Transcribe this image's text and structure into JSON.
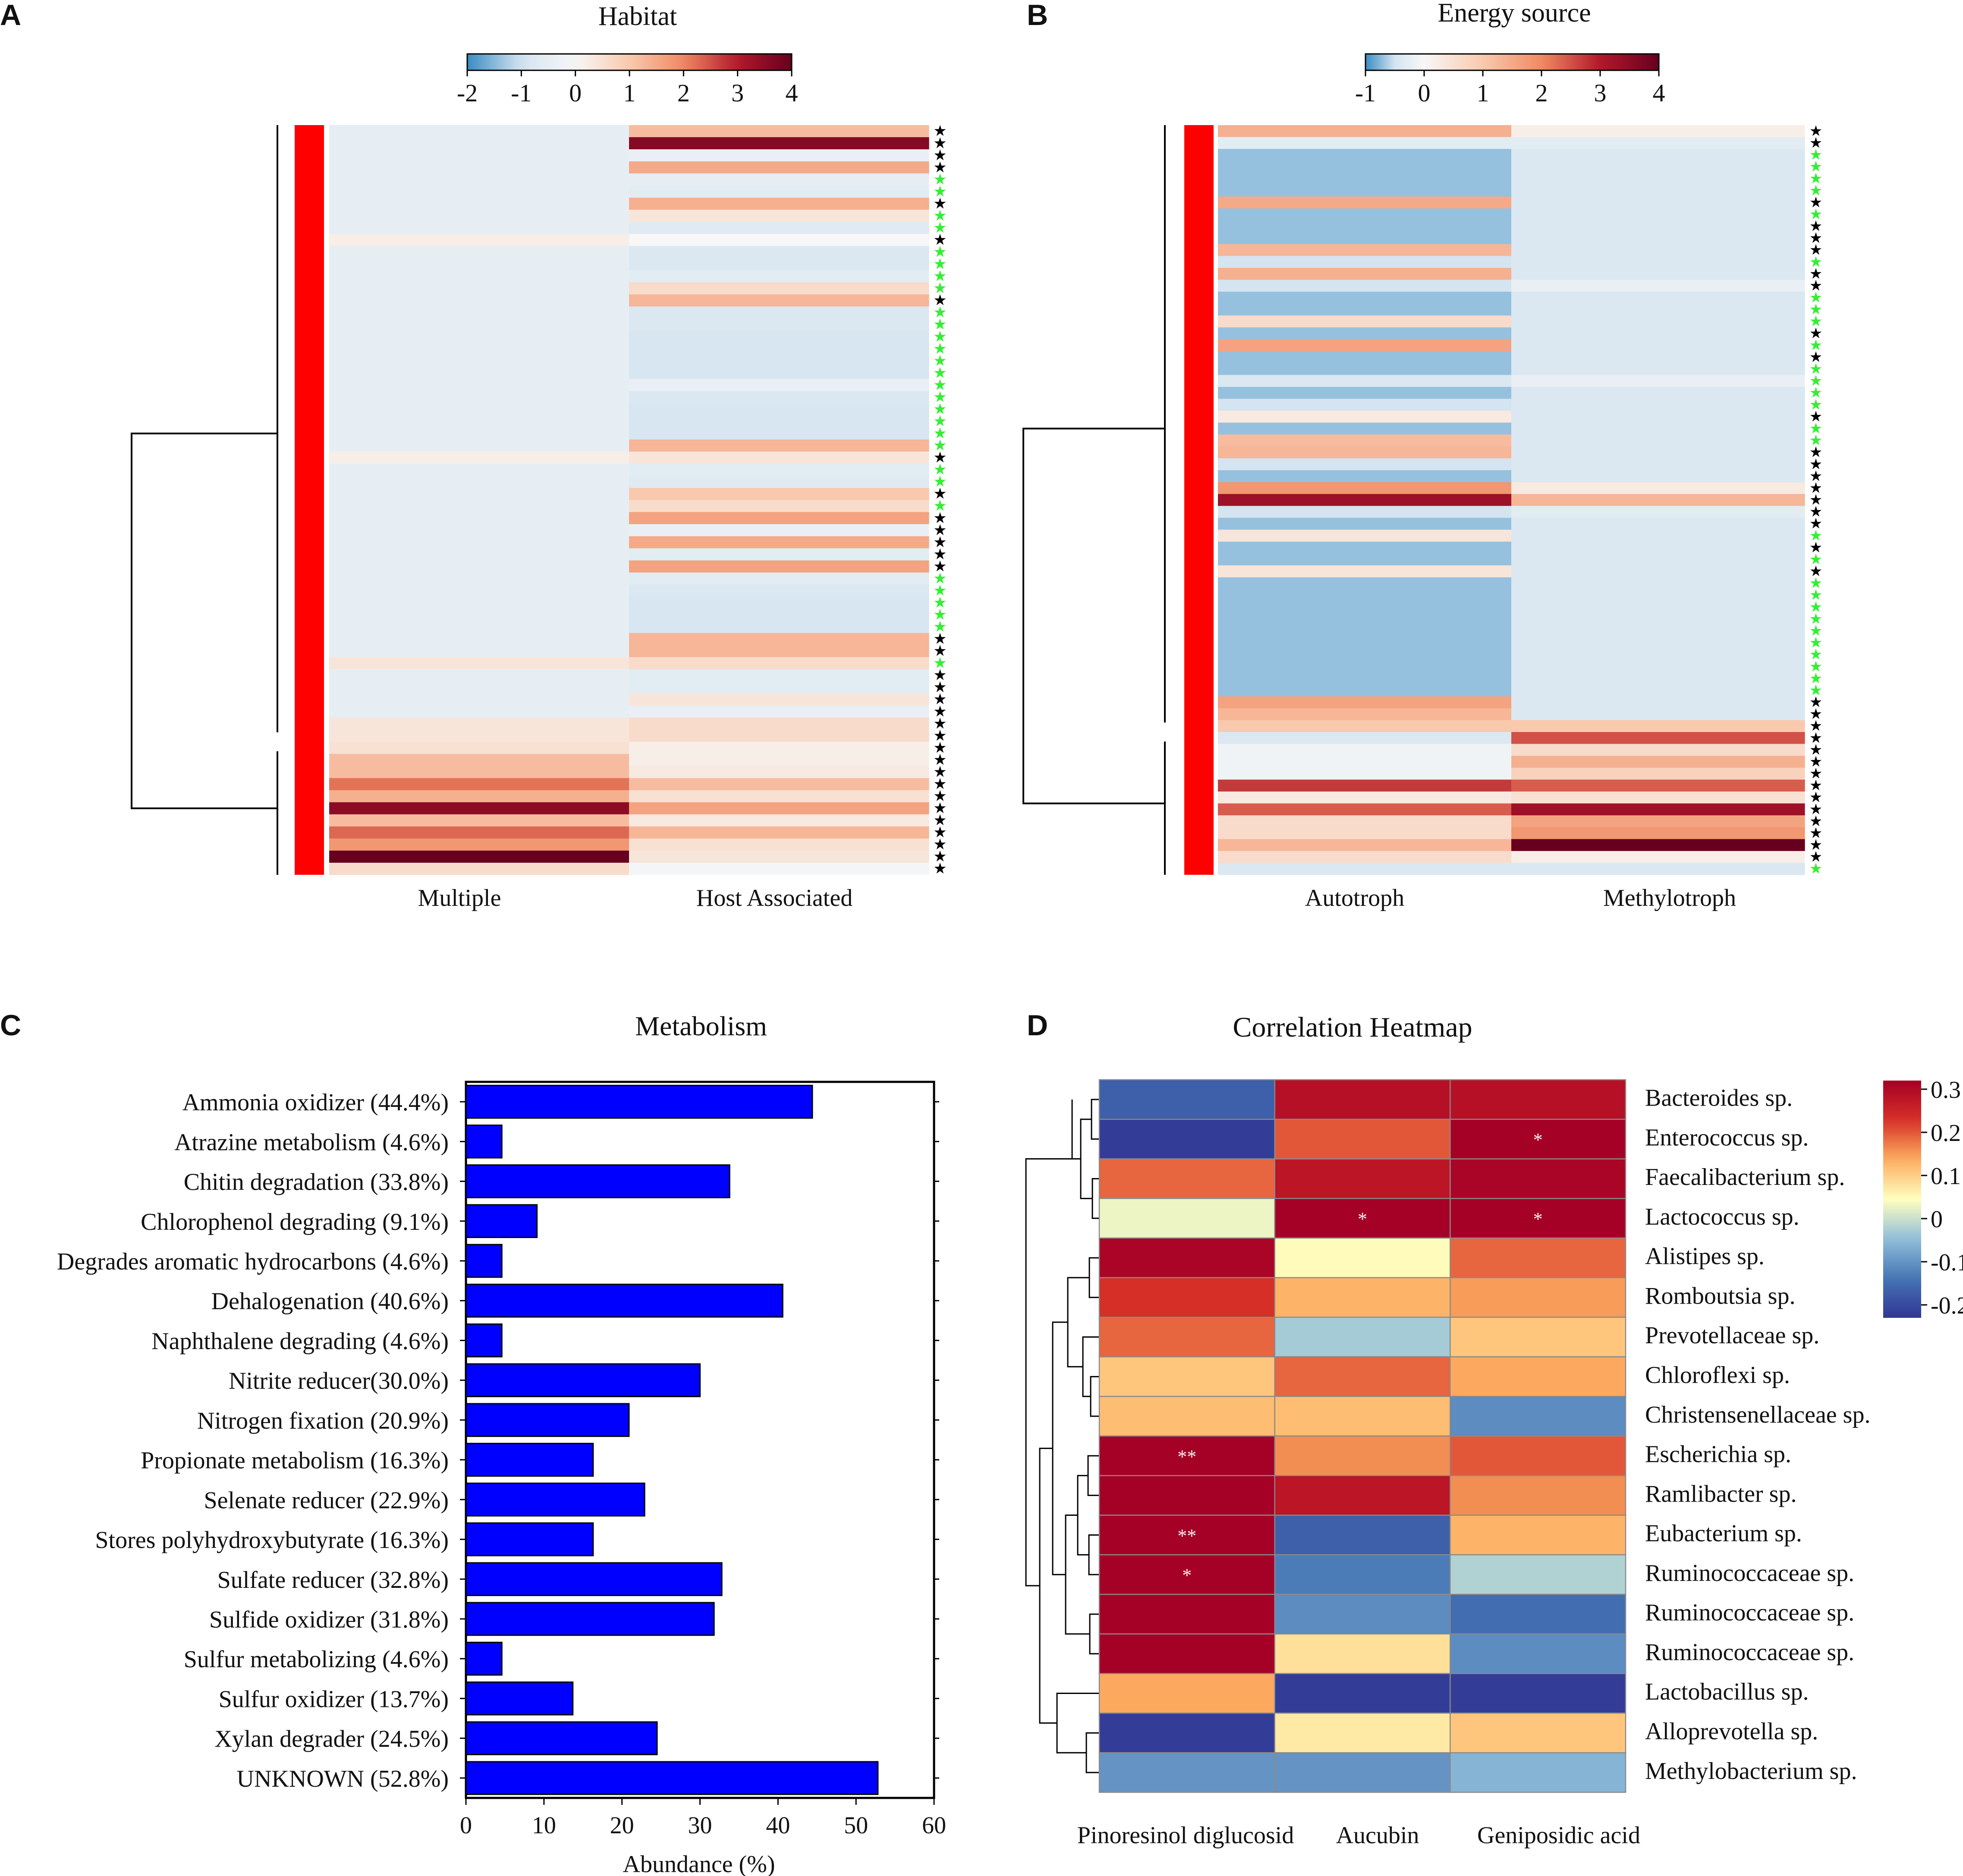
{
  "figure": {
    "panel_labels": [
      "A",
      "B",
      "C",
      "D"
    ]
  },
  "colors": {
    "heat_low": "#3a8cc4",
    "heat_mid_low": "#d4e4f0",
    "heat_mid": "#f7f7f7",
    "heat_mid_high": "#ef8a62",
    "heat_high": "#b2182b",
    "heat_top": "#67001f",
    "cluster_bar": "#ff0000",
    "star_black": "#000000",
    "star_green": "#33ee33",
    "bar_fill": "#0000ff",
    "corr_low": "#313695",
    "corr_mid": "#ffffbf",
    "corr_high": "#a50026"
  },
  "chart_data": [
    {
      "panel": "A",
      "type": "heatmap",
      "title": "Habitat",
      "columns": [
        "Multiple",
        "Host Associated"
      ],
      "colorbar_ticks": [
        "-2",
        "-1",
        "0",
        "1",
        "2",
        "3",
        "4"
      ],
      "colorbar_range": [
        -2,
        4
      ],
      "cluster_split_row": 51,
      "star_symbol": "★",
      "rows": [
        [
          -0.5,
          1.2
        ],
        [
          -0.5,
          3.6
        ],
        [
          -0.5,
          -0.4
        ],
        [
          -0.5,
          1.5
        ],
        [
          -0.5,
          -0.5
        ],
        [
          -0.5,
          -0.6
        ],
        [
          -0.5,
          1.4
        ],
        [
          -0.5,
          0.4
        ],
        [
          -0.5,
          -0.7
        ],
        [
          0.2,
          0.0
        ],
        [
          -0.5,
          -0.8
        ],
        [
          -0.5,
          -0.8
        ],
        [
          -0.5,
          -0.6
        ],
        [
          -0.5,
          0.6
        ],
        [
          -0.5,
          1.3
        ],
        [
          -0.5,
          -0.8
        ],
        [
          -0.5,
          -0.8
        ],
        [
          -0.5,
          -0.9
        ],
        [
          -0.5,
          -0.9
        ],
        [
          -0.5,
          -0.9
        ],
        [
          -0.5,
          -0.9
        ],
        [
          -0.5,
          -0.4
        ],
        [
          -0.5,
          -0.8
        ],
        [
          -0.5,
          -0.9
        ],
        [
          -0.5,
          -0.9
        ],
        [
          -0.5,
          -0.9
        ],
        [
          -0.5,
          1.3
        ],
        [
          0.2,
          0.4
        ],
        [
          -0.5,
          -0.6
        ],
        [
          -0.5,
          -0.7
        ],
        [
          -0.5,
          1.0
        ],
        [
          -0.5,
          0.6
        ],
        [
          -0.5,
          1.6
        ],
        [
          -0.5,
          -0.4
        ],
        [
          -0.5,
          1.5
        ],
        [
          -0.5,
          -0.6
        ],
        [
          -0.5,
          1.6
        ],
        [
          -0.5,
          -0.6
        ],
        [
          -0.5,
          -0.8
        ],
        [
          -0.5,
          -0.9
        ],
        [
          -0.5,
          -0.9
        ],
        [
          -0.5,
          -0.9
        ],
        [
          -0.5,
          1.3
        ],
        [
          -0.5,
          1.3
        ],
        [
          0.4,
          0.6
        ],
        [
          -0.5,
          -0.6
        ],
        [
          -0.5,
          -0.6
        ],
        [
          -0.5,
          0.4
        ],
        [
          -0.5,
          -0.4
        ],
        [
          0.4,
          0.6
        ],
        [
          0.4,
          0.6
        ],
        [
          0.5,
          0.2
        ],
        [
          1.2,
          0.2
        ],
        [
          1.2,
          0.3
        ],
        [
          2.2,
          1.2
        ],
        [
          1.4,
          0.5
        ],
        [
          3.5,
          1.6
        ],
        [
          1.2,
          0.3
        ],
        [
          2.3,
          1.3
        ],
        [
          1.8,
          0.5
        ],
        [
          4.0,
          0.4
        ],
        [
          0.6,
          -0.1
        ]
      ],
      "stars": [
        "k",
        "k",
        "k",
        "k",
        "g",
        "g",
        "k",
        "g",
        "g",
        "k",
        "g",
        "g",
        "g",
        "g",
        "k",
        "g",
        "g",
        "g",
        "g",
        "g",
        "g",
        "g",
        "g",
        "g",
        "g",
        "g",
        "g",
        "k",
        "g",
        "g",
        "k",
        "g",
        "k",
        "k",
        "k",
        "k",
        "k",
        "g",
        "g",
        "g",
        "g",
        "g",
        "k",
        "k",
        "g",
        "k",
        "k",
        "k",
        "k",
        "k",
        "k",
        "k",
        "k",
        "k",
        "k",
        "k",
        "k",
        "k",
        "k",
        "k",
        "k",
        "k"
      ],
      "xlabels": [
        "Multiple",
        "Host Associated"
      ]
    },
    {
      "panel": "B",
      "type": "heatmap",
      "title": "Energy source",
      "columns": [
        "Autotroph",
        "Methylotroph"
      ],
      "colorbar_ticks": [
        "-1",
        "0",
        "1",
        "2",
        "3",
        "4"
      ],
      "colorbar_range": [
        -1,
        4
      ],
      "cluster_split_row": 51,
      "star_symbol": "★",
      "rows": [
        [
          1.4,
          0.2
        ],
        [
          -0.3,
          -0.3
        ],
        [
          -0.7,
          -0.4
        ],
        [
          -0.7,
          -0.4
        ],
        [
          -0.7,
          -0.4
        ],
        [
          -0.7,
          -0.4
        ],
        [
          1.5,
          -0.4
        ],
        [
          -0.7,
          -0.4
        ],
        [
          -0.7,
          -0.4
        ],
        [
          -0.7,
          -0.4
        ],
        [
          1.3,
          -0.4
        ],
        [
          -0.5,
          -0.4
        ],
        [
          1.4,
          -0.4
        ],
        [
          -0.5,
          -0.2
        ],
        [
          -0.7,
          -0.4
        ],
        [
          -0.7,
          -0.4
        ],
        [
          0.6,
          -0.4
        ],
        [
          -0.7,
          -0.4
        ],
        [
          1.6,
          -0.4
        ],
        [
          -0.7,
          -0.4
        ],
        [
          -0.7,
          -0.4
        ],
        [
          -0.4,
          -0.2
        ],
        [
          -0.7,
          -0.4
        ],
        [
          -0.5,
          -0.4
        ],
        [
          0.3,
          -0.4
        ],
        [
          -0.7,
          -0.4
        ],
        [
          1.2,
          -0.4
        ],
        [
          1.3,
          -0.4
        ],
        [
          -0.5,
          -0.4
        ],
        [
          -0.7,
          -0.4
        ],
        [
          1.8,
          0.3
        ],
        [
          3.3,
          1.3
        ],
        [
          -0.5,
          -0.3
        ],
        [
          -0.7,
          -0.4
        ],
        [
          0.4,
          -0.4
        ],
        [
          -0.7,
          -0.4
        ],
        [
          -0.7,
          -0.4
        ],
        [
          0.4,
          -0.4
        ],
        [
          -0.7,
          -0.4
        ],
        [
          -0.7,
          -0.4
        ],
        [
          -0.7,
          -0.4
        ],
        [
          -0.7,
          -0.4
        ],
        [
          -0.7,
          -0.4
        ],
        [
          -0.7,
          -0.4
        ],
        [
          -0.7,
          -0.4
        ],
        [
          -0.7,
          -0.4
        ],
        [
          -0.7,
          -0.4
        ],
        [
          -0.7,
          -0.4
        ],
        [
          1.6,
          -0.4
        ],
        [
          1.3,
          -0.4
        ],
        [
          1.0,
          1.0
        ],
        [
          -0.4,
          2.5
        ],
        [
          -0.1,
          0.6
        ],
        [
          -0.1,
          1.4
        ],
        [
          -0.1,
          0.8
        ],
        [
          2.7,
          2.4
        ],
        [
          0.3,
          0.5
        ],
        [
          2.4,
          3.3
        ],
        [
          0.6,
          1.6
        ],
        [
          0.6,
          1.8
        ],
        [
          1.3,
          4.0
        ],
        [
          0.6,
          0.2
        ],
        [
          -0.4,
          -0.4
        ]
      ],
      "stars": [
        "k",
        "k",
        "g",
        "g",
        "g",
        "g",
        "k",
        "g",
        "k",
        "k",
        "k",
        "g",
        "k",
        "k",
        "g",
        "g",
        "g",
        "k",
        "g",
        "k",
        "g",
        "g",
        "g",
        "g",
        "k",
        "g",
        "g",
        "k",
        "k",
        "k",
        "k",
        "k",
        "k",
        "k",
        "g",
        "k",
        "g",
        "k",
        "g",
        "g",
        "g",
        "g",
        "g",
        "g",
        "g",
        "g",
        "g",
        "g",
        "k",
        "k",
        "k",
        "k",
        "k",
        "k",
        "k",
        "k",
        "k",
        "k",
        "k",
        "k",
        "k",
        "k",
        "g"
      ],
      "xlabels": [
        "Autotroph",
        "Methylotroph"
      ]
    },
    {
      "panel": "C",
      "type": "bar",
      "orientation": "horizontal",
      "title": "Metabolism",
      "xlabel": "Abundance (%)",
      "xlim": [
        0,
        60
      ],
      "xticks": [
        "0",
        "10",
        "20",
        "30",
        "40",
        "50",
        "60"
      ],
      "categories": [
        "Ammonia oxidizer (44.4%)",
        "Atrazine metabolism (4.6%)",
        "Chitin degradation (33.8%)",
        "Chlorophenol degrading (9.1%)",
        "Degrades aromatic hydrocarbons (4.6%)",
        "Dehalogenation (40.6%)",
        "Naphthalene degrading (4.6%)",
        "Nitrite reducer(30.0%)",
        "Nitrogen fixation (20.9%)",
        "Propionate metabolism (16.3%)",
        "Selenate reducer (22.9%)",
        "Stores polyhydroxybutyrate (16.3%)",
        "Sulfate reducer (32.8%)",
        "Sulfide oxidizer (31.8%)",
        "Sulfur metabolizing (4.6%)",
        "Sulfur oxidizer (13.7%)",
        "Xylan degrader (24.5%)",
        "UNKNOWN (52.8%)"
      ],
      "values": [
        44.4,
        4.6,
        33.8,
        9.1,
        4.6,
        40.6,
        4.6,
        30.0,
        20.9,
        16.3,
        22.9,
        16.3,
        32.8,
        31.8,
        4.6,
        13.7,
        24.5,
        52.8
      ]
    },
    {
      "panel": "D",
      "type": "heatmap",
      "title": "Correlation Heatmap",
      "columns": [
        "Pinoresinol diglucosid",
        "Aucubin",
        "Geniposidic acid"
      ],
      "colorbar_ticks": [
        "0.3",
        "0.2",
        "0.1",
        "0",
        "-0.1",
        "-0.2"
      ],
      "colorbar_range": [
        -0.23,
        0.32
      ],
      "rows": [
        "Bacteroides sp.",
        "Enterococcus sp.",
        "Faecalibacterium sp.",
        "Lactococcus sp.",
        "Alistipes sp.",
        "Romboutsia sp.",
        "Prevotellaceae sp.",
        "Chloroflexi sp.",
        "Christensenellaceae sp.",
        "Escherichia sp.",
        "Ramlibacter sp.",
        "Eubacterium sp.",
        "Ruminococcaceae sp.",
        "Ruminococcaceae sp.",
        "Ruminococcaceae sp.",
        "Lactobacillus sp.",
        "Alloprevotella sp.",
        "Methylobacterium sp."
      ],
      "values": [
        [
          -0.17,
          0.29,
          0.29
        ],
        [
          -0.22,
          0.2,
          0.32
        ],
        [
          0.19,
          0.28,
          0.31
        ],
        [
          0.03,
          0.32,
          0.32
        ],
        [
          0.31,
          0.05,
          0.19
        ],
        [
          0.23,
          0.13,
          0.15
        ],
        [
          0.19,
          -0.03,
          0.11
        ],
        [
          0.11,
          0.19,
          0.14
        ],
        [
          0.12,
          0.12,
          -0.11
        ],
        [
          0.32,
          0.16,
          0.2
        ],
        [
          0.32,
          0.28,
          0.16
        ],
        [
          0.32,
          -0.17,
          0.13
        ],
        [
          0.32,
          -0.13,
          -0.02
        ],
        [
          0.32,
          -0.11,
          -0.15
        ],
        [
          0.32,
          0.08,
          -0.11
        ],
        [
          0.14,
          -0.22,
          -0.22
        ],
        [
          -0.22,
          0.07,
          0.11
        ],
        [
          -0.1,
          -0.1,
          -0.06
        ]
      ],
      "significance": [
        [
          "",
          "",
          ""
        ],
        [
          "",
          "",
          "*"
        ],
        [
          "",
          "",
          ""
        ],
        [
          "",
          "*",
          "*"
        ],
        [
          "",
          "",
          ""
        ],
        [
          "",
          "",
          ""
        ],
        [
          "",
          "",
          ""
        ],
        [
          "",
          "",
          ""
        ],
        [
          "",
          "",
          ""
        ],
        [
          "**",
          "",
          ""
        ],
        [
          "",
          "",
          ""
        ],
        [
          "**",
          "",
          ""
        ],
        [
          "*",
          "",
          ""
        ],
        [
          "",
          "",
          ""
        ],
        [
          "",
          "",
          ""
        ],
        [
          "",
          "",
          ""
        ],
        [
          "",
          "",
          ""
        ],
        [
          "",
          "",
          ""
        ]
      ]
    }
  ]
}
